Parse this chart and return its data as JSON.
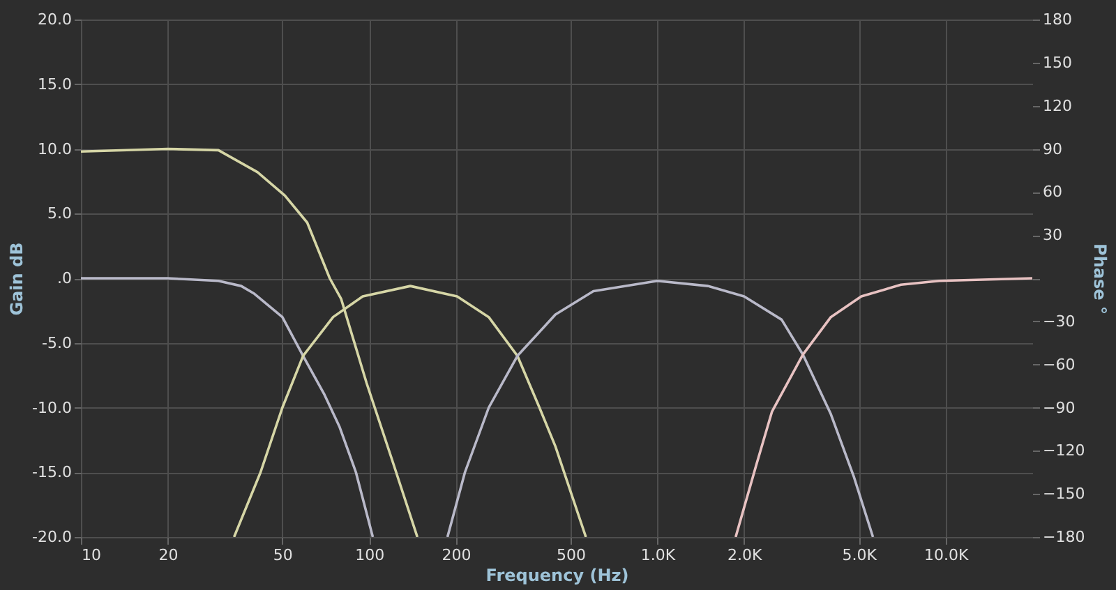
{
  "chart_data": {
    "type": "line",
    "xlabel": "Frequency (Hz)",
    "ylabel": "Gain dB",
    "y2label": "Phase °",
    "log": "x",
    "grid": true,
    "legend": false,
    "line_style": "solid",
    "marker": "none",
    "xlim": [
      10,
      20000
    ],
    "xticks": [
      10,
      20,
      50,
      100,
      200,
      500,
      {
        "value": 1000,
        "label": "1.0K"
      },
      {
        "value": 2000,
        "label": "2.0K"
      },
      {
        "value": 5000,
        "label": "5.0K"
      },
      {
        "value": 10000,
        "label": "10.0K"
      }
    ],
    "ylim": [
      -20,
      20
    ],
    "yticks": [
      {
        "value": -20,
        "label": "-20.0"
      },
      {
        "value": -15,
        "label": "-15.0"
      },
      {
        "value": -10,
        "label": "-10.0"
      },
      {
        "value": -5,
        "label": "-5.0"
      },
      {
        "value": 0,
        "label": ".0"
      },
      {
        "value": 5,
        "label": "5.0"
      },
      {
        "value": 10,
        "label": "10.0"
      },
      {
        "value": 15,
        "label": "15.0"
      },
      {
        "value": 20,
        "label": "20.0"
      }
    ],
    "y2lim": [
      -180,
      180
    ],
    "y2ticks": [
      -180,
      -150,
      -120,
      -90,
      -60,
      -30,
      {
        "value": 0,
        "label": null
      },
      30,
      60,
      90,
      120,
      150,
      180
    ],
    "series": [
      {
        "color": "#d6d6a6",
        "x": [
          10,
          20,
          30,
          41,
          51,
          61,
          73,
          80,
          98,
          120,
          147
        ],
        "values": [
          9.8,
          10,
          9.9,
          8.2,
          6.4,
          4.3,
          0,
          -1.6,
          -8.1,
          -14,
          -20
        ]
      },
      {
        "color": "#b9b9c9",
        "x": [
          10,
          20,
          30,
          36,
          40,
          50,
          59,
          70,
          79,
          90,
          103
        ],
        "values": [
          0,
          0,
          -0.2,
          -0.6,
          -1.2,
          -3,
          -6,
          -9,
          -11.5,
          -15,
          -20
        ]
      },
      {
        "color": "#d6d6a6",
        "x": [
          34,
          42,
          50,
          59,
          75,
          95,
          139,
          202,
          260,
          327,
          390,
          443,
          565
        ],
        "values": [
          -20,
          -15,
          -10,
          -6,
          -3,
          -1.4,
          -0.6,
          -1.4,
          -3,
          -6,
          -10,
          -13,
          -20
        ]
      },
      {
        "color": "#b9b9c9",
        "x": [
          187,
          215,
          260,
          327,
          443,
          600,
          1000,
          1500,
          2000,
          2700,
          3200,
          4000,
          4800,
          5600
        ],
        "values": [
          -20,
          -15,
          -10,
          -6,
          -2.8,
          -1,
          -0.2,
          -0.6,
          -1.4,
          -3.2,
          -5.9,
          -10.5,
          -15.3,
          -20
        ]
      },
      {
        "color": "#e8c2c2",
        "x": [
          1870,
          2200,
          2500,
          3200,
          4000,
          5100,
          7000,
          9500,
          20000
        ],
        "values": [
          -20,
          -14.5,
          -10.3,
          -5.9,
          -3,
          -1.4,
          -0.5,
          -0.2,
          0
        ]
      }
    ]
  }
}
